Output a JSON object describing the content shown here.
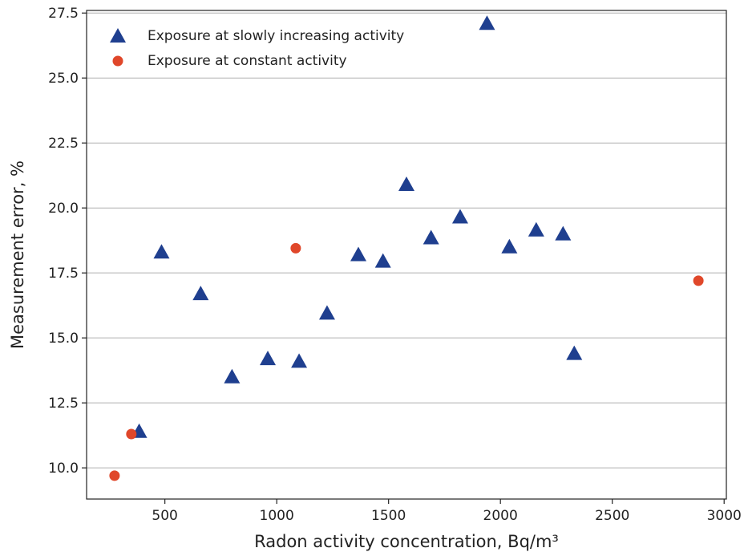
{
  "chart_data": {
    "type": "scatter",
    "xlabel": "Radon activity concentration, Bq/m³",
    "ylabel": "Measurement error, %",
    "xlim": [
      150,
      3010
    ],
    "ylim": [
      8.8,
      27.6
    ],
    "xticks": [
      500,
      1000,
      1500,
      2000,
      2500,
      3000
    ],
    "yticks": [
      10.0,
      12.5,
      15.0,
      17.5,
      20.0,
      22.5,
      25.0,
      27.5
    ],
    "xtick_labels": [
      "500",
      "1000",
      "1500",
      "2000",
      "2500",
      "3000"
    ],
    "ytick_labels": [
      "10.0",
      "12.5",
      "15.0",
      "17.5",
      "20.0",
      "22.5",
      "25.0",
      "27.5"
    ],
    "grid": "horizontal",
    "legend_position": "top-left",
    "series": [
      {
        "name": "Exposure at slowly increasing activity",
        "marker": "triangle",
        "color": "#1f3f8f",
        "points": [
          [
            385,
            11.4
          ],
          [
            485,
            18.3
          ],
          [
            660,
            16.7
          ],
          [
            800,
            13.5
          ],
          [
            960,
            14.2
          ],
          [
            1100,
            14.1
          ],
          [
            1225,
            15.95
          ],
          [
            1365,
            18.2
          ],
          [
            1475,
            17.95
          ],
          [
            1580,
            20.9
          ],
          [
            1690,
            18.85
          ],
          [
            1820,
            19.65
          ],
          [
            2040,
            18.5
          ],
          [
            2160,
            19.15
          ],
          [
            2280,
            19.0
          ],
          [
            2330,
            14.4
          ],
          [
            1940,
            27.1
          ]
        ]
      },
      {
        "name": "Exposure at constant activity",
        "marker": "circle",
        "color": "#e0472a",
        "points": [
          [
            275,
            9.7
          ],
          [
            350,
            11.3
          ],
          [
            1085,
            18.45
          ],
          [
            2885,
            17.2
          ]
        ]
      }
    ]
  }
}
